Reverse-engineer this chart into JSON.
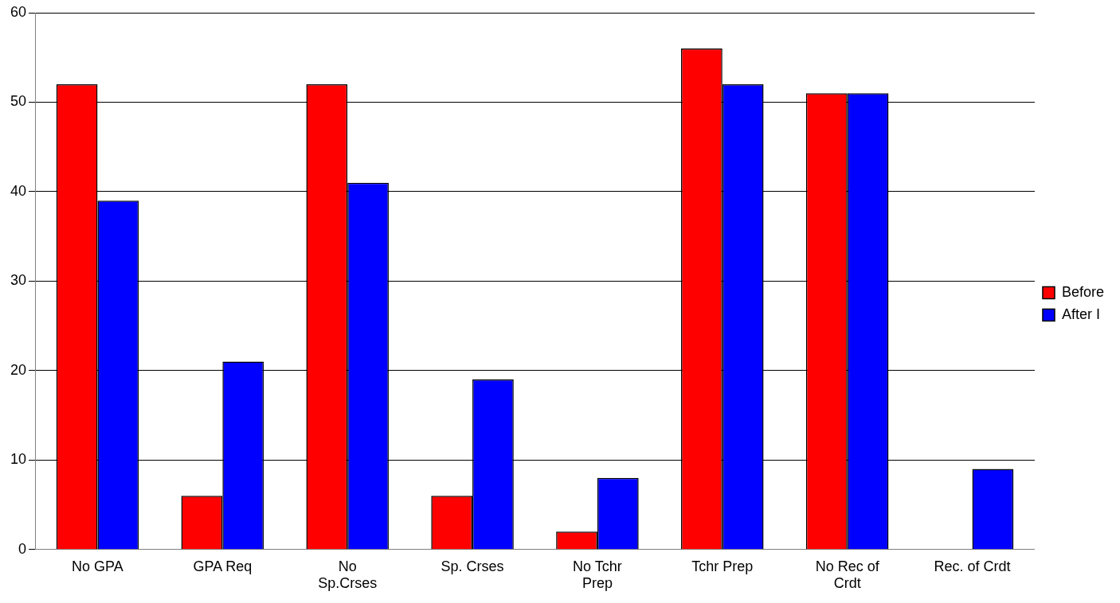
{
  "chart_data": {
    "type": "bar",
    "categories": [
      "No GPA",
      "GPA Req",
      "No Sp.Crses",
      "Sp. Crses",
      "No Tchr Prep",
      "Tchr Prep",
      "No Rec of Crdt",
      "Rec. of Crdt"
    ],
    "series": [
      {
        "name": "Before",
        "color": "#ff0000",
        "values": [
          52,
          6,
          52,
          6,
          2,
          56,
          51,
          0
        ]
      },
      {
        "name": "After I",
        "color": "#0000ff",
        "values": [
          39,
          21,
          41,
          19,
          8,
          52,
          51,
          9
        ]
      }
    ],
    "ylim": [
      0,
      60
    ],
    "yticks": [
      0,
      10,
      20,
      30,
      40,
      50,
      60
    ],
    "grid": "y",
    "legend": "right"
  }
}
